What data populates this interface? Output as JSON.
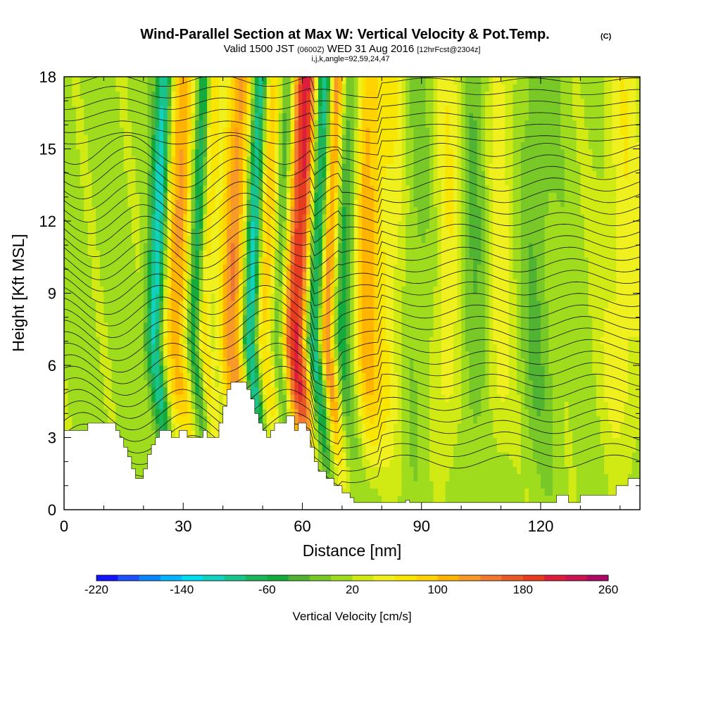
{
  "chart_data": {
    "type": "heatmap",
    "title": "Wind-Parallel Section at Max W: Vertical Velocity & Pot.Temp.",
    "title_mark": "(C)",
    "subtitle_valid": "Valid 1500 JST",
    "subtitle_utc": "(0600Z)",
    "subtitle_date": "WED 31 Aug 2016",
    "subtitle_fcst": "[12hrFcst@2304z]",
    "subtitle_indices": "i,j,k,angle=92,59,24,47",
    "xlabel": "Distance [nm]",
    "ylabel": "Height [Kft MSL]",
    "xlim": [
      0,
      145
    ],
    "ylim": [
      0,
      18
    ],
    "x_ticks": [
      "0",
      "30",
      "60",
      "90",
      "120"
    ],
    "x_tick_values": [
      0,
      30,
      60,
      90,
      120
    ],
    "y_ticks": [
      "0",
      "3",
      "6",
      "9",
      "12",
      "15",
      "18"
    ],
    "y_tick_values": [
      0,
      3,
      6,
      9,
      12,
      15,
      18
    ],
    "colorbar": {
      "label": "Vertical Velocity [cm/s]",
      "min": -220,
      "max": 260,
      "step": 20,
      "tick_labels": [
        "-220",
        "-140",
        "-60",
        "20",
        "100",
        "180",
        "260"
      ],
      "tick_values": [
        -220,
        -140,
        -60,
        20,
        100,
        180,
        260
      ],
      "colors": [
        "#1414ff",
        "#1e50ff",
        "#0a87ff",
        "#05b4ff",
        "#00dcf0",
        "#10d2be",
        "#18c48c",
        "#1eb45a",
        "#14aa3c",
        "#50b432",
        "#78c828",
        "#a0dc1e",
        "#d2ea14",
        "#f0f01e",
        "#f8e600",
        "#ffd200",
        "#ffb400",
        "#f89a28",
        "#f07830",
        "#e85a28",
        "#e83c1e",
        "#dc1e3c",
        "#c81450",
        "#aa0a64",
        "#8c1478",
        "#6e1496"
      ]
    },
    "updrafts": [
      {
        "x": 24,
        "w": 2.2,
        "amp": 85
      },
      {
        "x": 27,
        "w": 1.5,
        "amp": 60
      },
      {
        "x": 33,
        "w": 1.5,
        "amp": 75
      },
      {
        "x": 40,
        "w": 2.3,
        "amp": 120
      },
      {
        "x": 48,
        "w": 2.0,
        "amp": 85
      },
      {
        "x": 57,
        "w": 2.8,
        "amp": 210
      },
      {
        "x": 64,
        "w": 1.5,
        "amp": 170
      },
      {
        "x": 75,
        "w": 2.5,
        "amp": 90
      },
      {
        "x": 82,
        "w": 3.5,
        "amp": 55
      },
      {
        "x": 96,
        "w": 2.5,
        "amp": 45
      },
      {
        "x": 108,
        "w": 3.0,
        "amp": 45
      },
      {
        "x": 140,
        "w": 4.0,
        "amp": 40
      }
    ],
    "downdrafts": [
      {
        "x": 21,
        "w": 1.6,
        "amp": 150
      },
      {
        "x": 31,
        "w": 1.3,
        "amp": 100
      },
      {
        "x": 45,
        "w": 1.4,
        "amp": 150
      },
      {
        "x": 52,
        "w": 1.3,
        "amp": 80
      },
      {
        "x": 61,
        "w": 2.0,
        "amp": 190
      },
      {
        "x": 68,
        "w": 2.0,
        "amp": 70
      },
      {
        "x": 86,
        "w": 3.0,
        "amp": 35
      },
      {
        "x": 103,
        "w": 3.0,
        "amp": 40
      },
      {
        "x": 118,
        "w": 3.0,
        "amp": 30
      }
    ],
    "terrain": [
      [
        0,
        3.3
      ],
      [
        5,
        3.3
      ],
      [
        6,
        3.6
      ],
      [
        12,
        3.6
      ],
      [
        13,
        3.3
      ],
      [
        14,
        3.0
      ],
      [
        15,
        2.6
      ],
      [
        16,
        2.2
      ],
      [
        17,
        1.7
      ],
      [
        18,
        1.3
      ],
      [
        20,
        1.7
      ],
      [
        21,
        2.3
      ],
      [
        22,
        2.7
      ],
      [
        23,
        3.0
      ],
      [
        24,
        3.3
      ],
      [
        26,
        3.3
      ],
      [
        27,
        3.0
      ],
      [
        29,
        3.3
      ],
      [
        30,
        3.3
      ],
      [
        31,
        3.0
      ],
      [
        34,
        3.0
      ],
      [
        35,
        3.3
      ],
      [
        36,
        3.0
      ],
      [
        38,
        3.0
      ],
      [
        39,
        3.6
      ],
      [
        40,
        4.3
      ],
      [
        41,
        5.0
      ],
      [
        42,
        5.3
      ],
      [
        45,
        5.3
      ],
      [
        46,
        5.0
      ],
      [
        47,
        4.6
      ],
      [
        48,
        4.0
      ],
      [
        49,
        3.6
      ],
      [
        50,
        3.3
      ],
      [
        51,
        3.0
      ],
      [
        52,
        3.3
      ],
      [
        53,
        3.6
      ],
      [
        54,
        3.6
      ],
      [
        56,
        3.9
      ],
      [
        58,
        3.3
      ],
      [
        59,
        3.6
      ],
      [
        60,
        3.6
      ],
      [
        61,
        3.3
      ],
      [
        62,
        2.6
      ],
      [
        63,
        2.0
      ],
      [
        64,
        1.6
      ],
      [
        66,
        1.3
      ],
      [
        68,
        1.0
      ],
      [
        70,
        0.7
      ],
      [
        72,
        0.5
      ],
      [
        73,
        0.3
      ],
      [
        83,
        0.3
      ],
      [
        86,
        0.4
      ],
      [
        87,
        0.3
      ],
      [
        122,
        0.3
      ],
      [
        124,
        0.6
      ],
      [
        126,
        0.6
      ],
      [
        127,
        0.3
      ],
      [
        129,
        0.3
      ],
      [
        130,
        0.6
      ],
      [
        138,
        0.6
      ],
      [
        139,
        1.0
      ],
      [
        142,
        1.3
      ],
      [
        145,
        1.3
      ]
    ],
    "theta_contour_count": 34
  }
}
